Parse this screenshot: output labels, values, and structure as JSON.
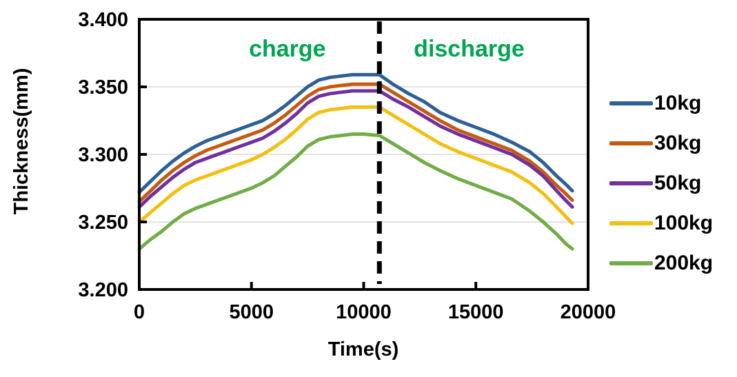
{
  "figure": {
    "background": "#ffffff"
  },
  "colors": {
    "frame": "#000000",
    "gridline": "#d9d9d9",
    "annotation_green": "#00a651",
    "dashed_line": "#000000"
  },
  "chart_data": {
    "type": "line",
    "title": "",
    "xlabel": "Time(s)",
    "ylabel": "Thickness(mm)",
    "xlim": [
      0,
      20000
    ],
    "ylim": [
      3.2,
      3.4
    ],
    "x_ticks": [
      0,
      5000,
      10000,
      15000,
      20000
    ],
    "x_tick_labels": [
      "0",
      "5000",
      "10000",
      "15000",
      "20000"
    ],
    "y_ticks": [
      3.2,
      3.25,
      3.3,
      3.35,
      3.4
    ],
    "y_tick_labels": [
      "3.200",
      "3.250",
      "3.300",
      "3.350",
      "3.400"
    ],
    "grid": "horizontal-only",
    "gridline_values": [
      3.25,
      3.3,
      3.35
    ],
    "legend_position": "right-outside",
    "annotations": [
      {
        "kind": "text",
        "text": "charge",
        "x": 6600,
        "y": 3.377,
        "color": "#00a651"
      },
      {
        "kind": "text",
        "text": "discharge",
        "x": 14700,
        "y": 3.377,
        "color": "#00a651"
      },
      {
        "kind": "vline",
        "x": 10700,
        "style": "dashed",
        "color": "#000000"
      }
    ],
    "x": [
      0,
      500,
      1000,
      1500,
      2000,
      2500,
      3000,
      3500,
      4000,
      4500,
      5000,
      5500,
      6000,
      6500,
      7000,
      7500,
      8000,
      8500,
      9000,
      9500,
      10000,
      10700,
      11300,
      12000,
      12700,
      13400,
      14200,
      15000,
      15800,
      16600,
      17400,
      18000,
      18600,
      19000,
      19300
    ],
    "series": [
      {
        "name": "10kg",
        "color": "#2e5f96",
        "values": [
          3.272,
          3.28,
          3.288,
          3.295,
          3.301,
          3.306,
          3.31,
          3.313,
          3.316,
          3.319,
          3.322,
          3.325,
          3.33,
          3.336,
          3.343,
          3.35,
          3.355,
          3.357,
          3.358,
          3.359,
          3.359,
          3.359,
          3.352,
          3.345,
          3.339,
          3.331,
          3.325,
          3.32,
          3.315,
          3.309,
          3.302,
          3.294,
          3.284,
          3.278,
          3.273
        ]
      },
      {
        "name": "30kg",
        "color": "#c55a11",
        "values": [
          3.265,
          3.273,
          3.281,
          3.288,
          3.294,
          3.299,
          3.303,
          3.306,
          3.309,
          3.312,
          3.315,
          3.318,
          3.323,
          3.329,
          3.336,
          3.343,
          3.348,
          3.35,
          3.351,
          3.352,
          3.352,
          3.352,
          3.346,
          3.339,
          3.332,
          3.325,
          3.318,
          3.313,
          3.308,
          3.303,
          3.295,
          3.287,
          3.277,
          3.271,
          3.266
        ]
      },
      {
        "name": "50kg",
        "color": "#7030a0",
        "values": [
          3.261,
          3.269,
          3.276,
          3.283,
          3.289,
          3.294,
          3.297,
          3.3,
          3.303,
          3.306,
          3.309,
          3.312,
          3.317,
          3.323,
          3.33,
          3.338,
          3.343,
          3.345,
          3.346,
          3.347,
          3.347,
          3.347,
          3.341,
          3.335,
          3.328,
          3.321,
          3.315,
          3.31,
          3.305,
          3.3,
          3.292,
          3.284,
          3.273,
          3.266,
          3.261
        ]
      },
      {
        "name": "100kg",
        "color": "#f2c011",
        "values": [
          3.25,
          3.257,
          3.264,
          3.271,
          3.277,
          3.281,
          3.284,
          3.287,
          3.29,
          3.293,
          3.296,
          3.3,
          3.305,
          3.311,
          3.318,
          3.326,
          3.331,
          3.333,
          3.334,
          3.335,
          3.335,
          3.335,
          3.329,
          3.322,
          3.315,
          3.308,
          3.302,
          3.297,
          3.292,
          3.287,
          3.279,
          3.271,
          3.261,
          3.254,
          3.249
        ]
      },
      {
        "name": "200kg",
        "color": "#70ad47",
        "values": [
          3.23,
          3.237,
          3.243,
          3.25,
          3.256,
          3.26,
          3.263,
          3.266,
          3.269,
          3.272,
          3.275,
          3.279,
          3.284,
          3.291,
          3.298,
          3.306,
          3.311,
          3.313,
          3.314,
          3.315,
          3.315,
          3.314,
          3.308,
          3.301,
          3.294,
          3.288,
          3.282,
          3.277,
          3.272,
          3.267,
          3.258,
          3.25,
          3.241,
          3.234,
          3.23
        ]
      }
    ]
  }
}
